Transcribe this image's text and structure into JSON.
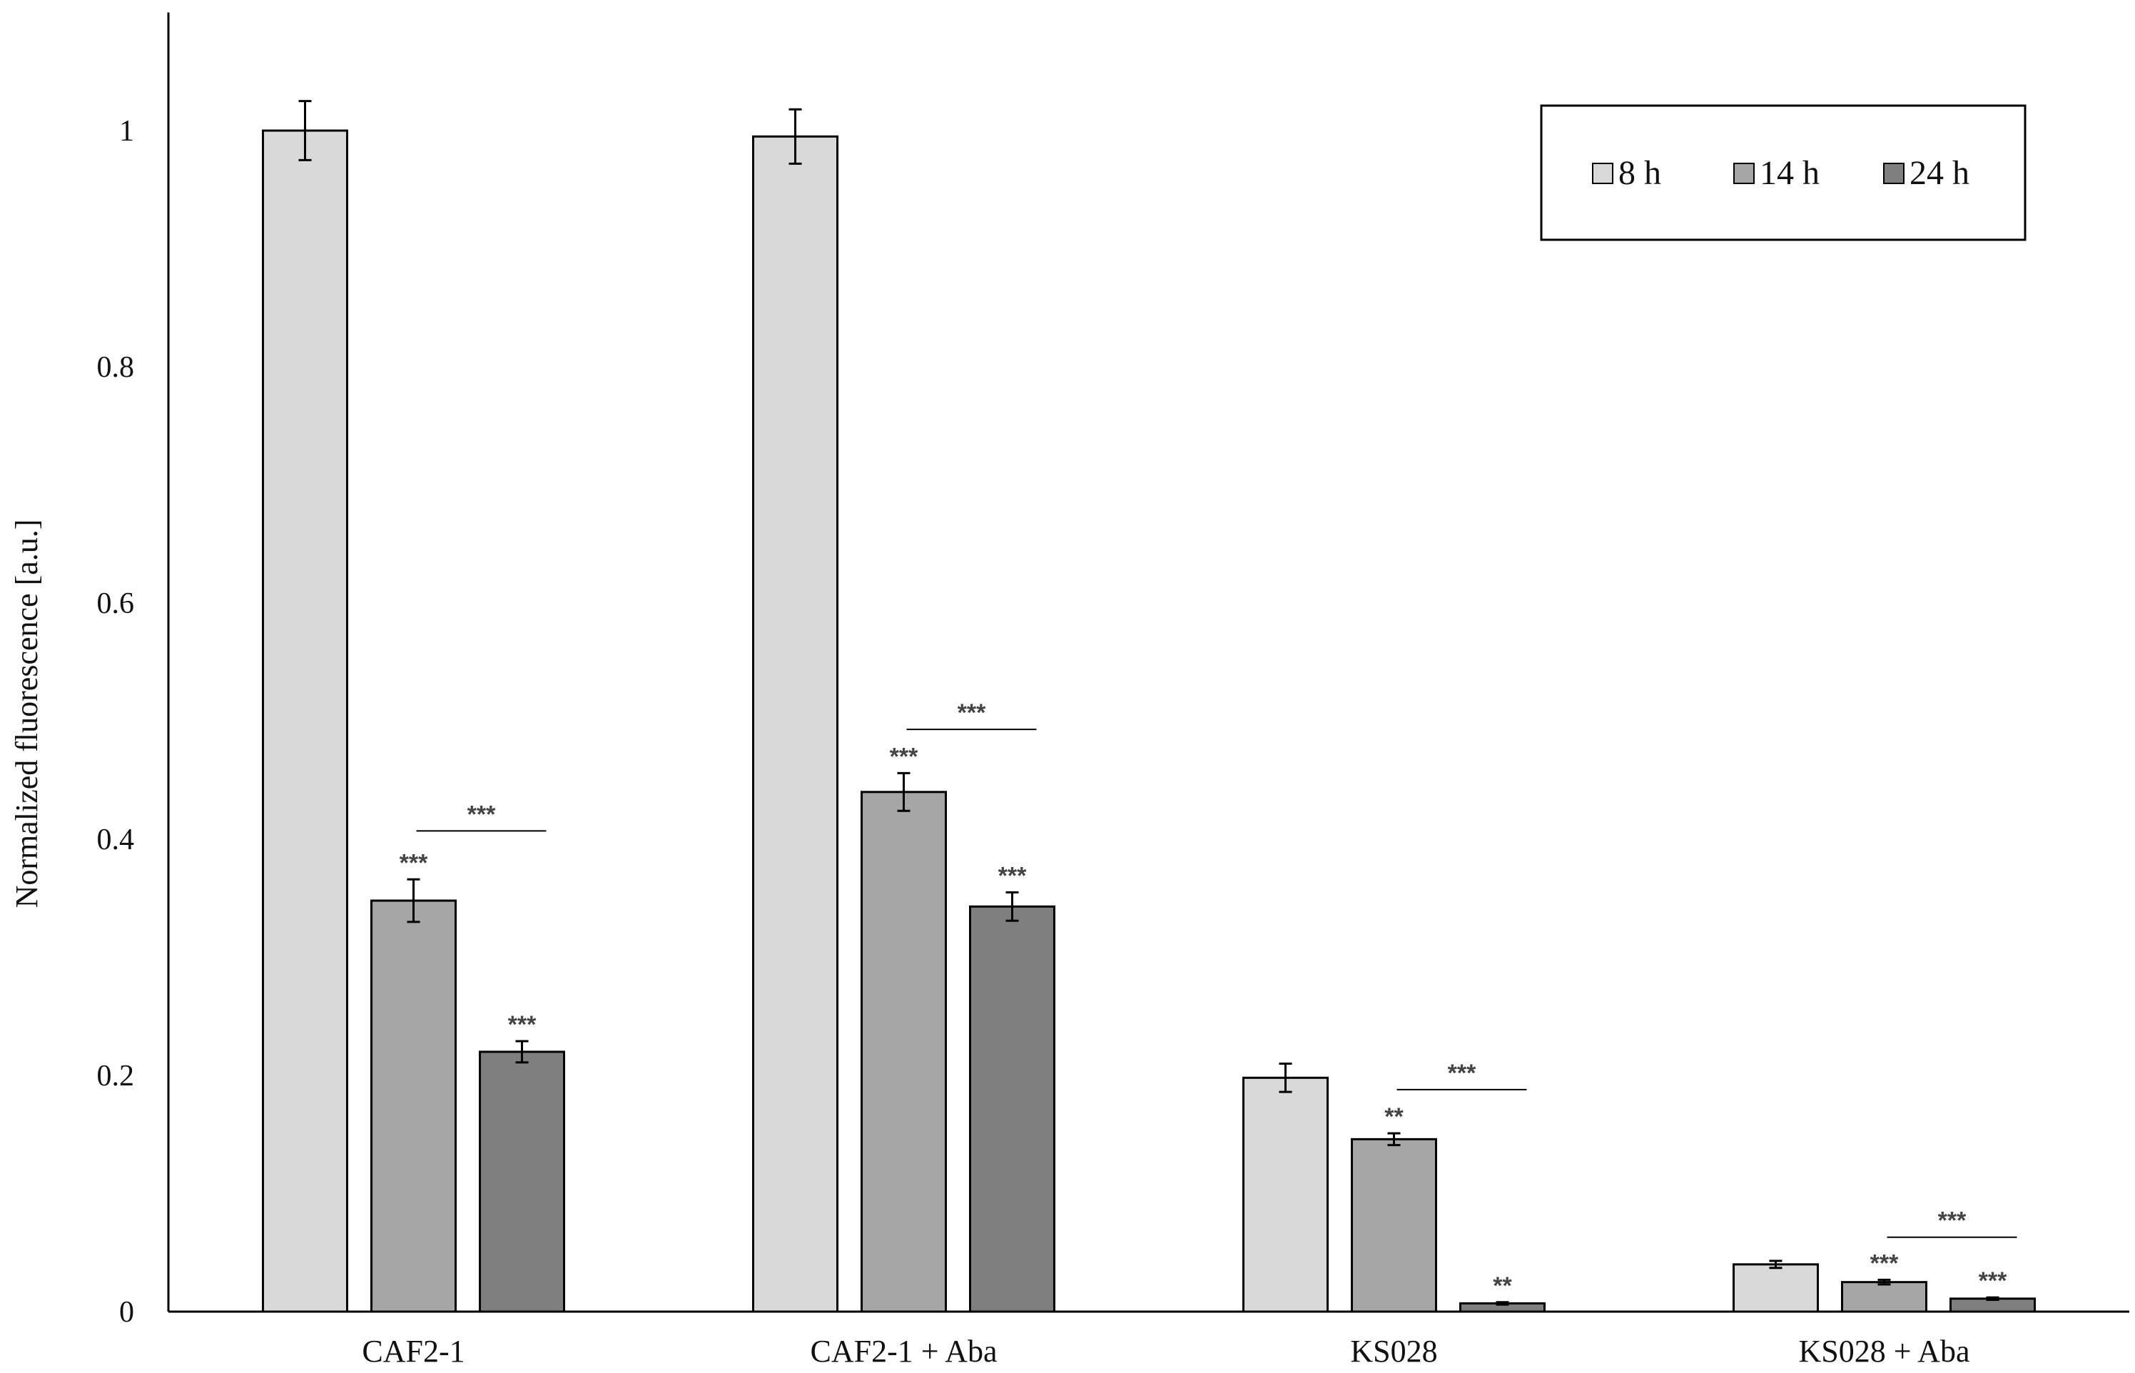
{
  "chart_data": {
    "type": "bar",
    "ylabel": "Normalized fluorescence [a.u.]",
    "xlabel": "",
    "ylim": [
      0,
      1.1
    ],
    "yticks": [
      {
        "value": 0,
        "label": "0"
      },
      {
        "value": 0.2,
        "label": "0.2"
      },
      {
        "value": 0.4,
        "label": "0.4"
      },
      {
        "value": 0.6,
        "label": "0.6"
      },
      {
        "value": 0.8,
        "label": "0.8"
      },
      {
        "value": 1,
        "label": "1"
      }
    ],
    "grid": false,
    "legend_position": "top-right",
    "categories": [
      "CAF2-1",
      "CAF2-1 + Aba",
      "KS028",
      "KS028 + Aba"
    ],
    "series": [
      {
        "name": "8 h",
        "color": "#d9d9d9",
        "values": [
          1.0,
          0.995,
          0.198,
          0.04
        ],
        "errors": [
          0.025,
          0.023,
          0.012,
          0.003
        ],
        "significance": [
          "",
          "",
          "",
          ""
        ]
      },
      {
        "name": "14 h",
        "color": "#a6a6a6",
        "values": [
          0.348,
          0.44,
          0.146,
          0.025
        ],
        "errors": [
          0.018,
          0.016,
          0.005,
          0.002
        ],
        "significance": [
          "***",
          "***",
          "**",
          "***"
        ]
      },
      {
        "name": "24 h",
        "color": "#7f7f7f",
        "values": [
          0.22,
          0.343,
          0.007,
          0.011
        ],
        "errors": [
          0.009,
          0.012,
          0.001,
          0.001
        ],
        "significance": [
          "***",
          "***",
          "**",
          "***"
        ]
      }
    ],
    "comparison_brackets": [
      {
        "category": 0,
        "from_series": 1,
        "to_series": 2,
        "y": 0.407,
        "label": "***"
      },
      {
        "category": 1,
        "from_series": 1,
        "to_series": 2,
        "y": 0.493,
        "label": "***"
      },
      {
        "category": 2,
        "from_series": 1,
        "to_series": 2,
        "y": 0.188,
        "label": "***"
      },
      {
        "category": 3,
        "from_series": 1,
        "to_series": 2,
        "y": 0.063,
        "label": "***"
      }
    ]
  }
}
